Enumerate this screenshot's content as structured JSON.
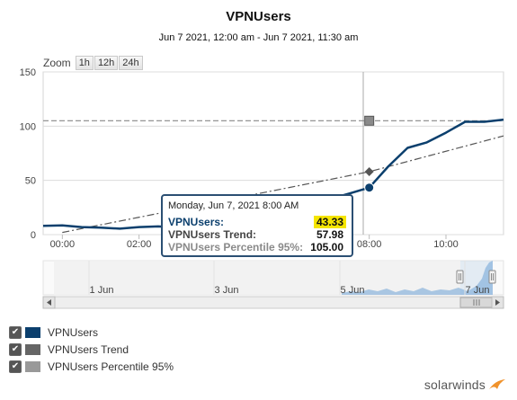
{
  "chart_data": {
    "type": "line",
    "title": "VPNUsers",
    "subtitle": "Jun 7 2021, 12:00 am - Jun 7 2021, 11:30 am",
    "x_ticks": [
      "00:00",
      "02:00",
      "04:00",
      "06:00",
      "08:00",
      "10:00"
    ],
    "y_ticks": [
      0,
      50,
      100,
      150
    ],
    "ylim": [
      0,
      150
    ],
    "xlim_hours": [
      -0.5,
      11.5
    ],
    "grid": true,
    "series": [
      {
        "name": "VPNUsers",
        "color": "#0b3f6d",
        "style": "solid",
        "x_hours": [
          -0.5,
          0.0,
          0.5,
          1.0,
          1.5,
          2.0,
          2.5,
          3.0,
          3.5,
          4.0,
          4.5,
          5.0,
          5.5,
          6.0,
          6.5,
          7.0,
          7.5,
          8.0,
          8.5,
          9.0,
          9.5,
          10.0,
          10.5,
          11.0,
          11.5
        ],
        "values": [
          8,
          8.5,
          7,
          6.5,
          5.5,
          7,
          7.5,
          6.5,
          6,
          7,
          8,
          12,
          15,
          20,
          27,
          33,
          38,
          43.33,
          63,
          80,
          85,
          94,
          104,
          104,
          106
        ]
      },
      {
        "name": "VPNUsers Trend",
        "color": "#555555",
        "style": "dashdot",
        "x_hours": [
          0,
          8,
          11.5
        ],
        "values": [
          2,
          57.98,
          91
        ]
      },
      {
        "name": "VPNUsers Percentile 95%",
        "color": "#888888",
        "style": "dashed",
        "x_hours": [
          -0.5,
          11.5
        ],
        "values": [
          105,
          105
        ]
      }
    ],
    "navigator": {
      "labels": [
        "1 Jun",
        "3 Jun",
        "5 Jun",
        "7 Jun"
      ]
    }
  },
  "zoom": {
    "label": "Zoom",
    "buttons": [
      "1h",
      "12h",
      "24h"
    ]
  },
  "tooltip": {
    "date": "Monday, Jun 7, 2021 8:00 AM",
    "rows": [
      {
        "label": "VPNUsers:",
        "value": "43.33",
        "color": "#0b3f6d",
        "highlight": "#f5e500"
      },
      {
        "label": "VPNUsers Trend:",
        "value": "57.98",
        "color": "#444444",
        "highlight": ""
      },
      {
        "label": "VPNUsers Percentile 95%:",
        "value": "105.00",
        "color": "#8a8a8a",
        "highlight": ""
      }
    ]
  },
  "legend": [
    {
      "label": "VPNUsers",
      "color": "#0b3f6d"
    },
    {
      "label": "VPNUsers Trend",
      "color": "#666666"
    },
    {
      "label": "VPNUsers Percentile 95%",
      "color": "#999999"
    }
  ],
  "brand": "solarwinds"
}
